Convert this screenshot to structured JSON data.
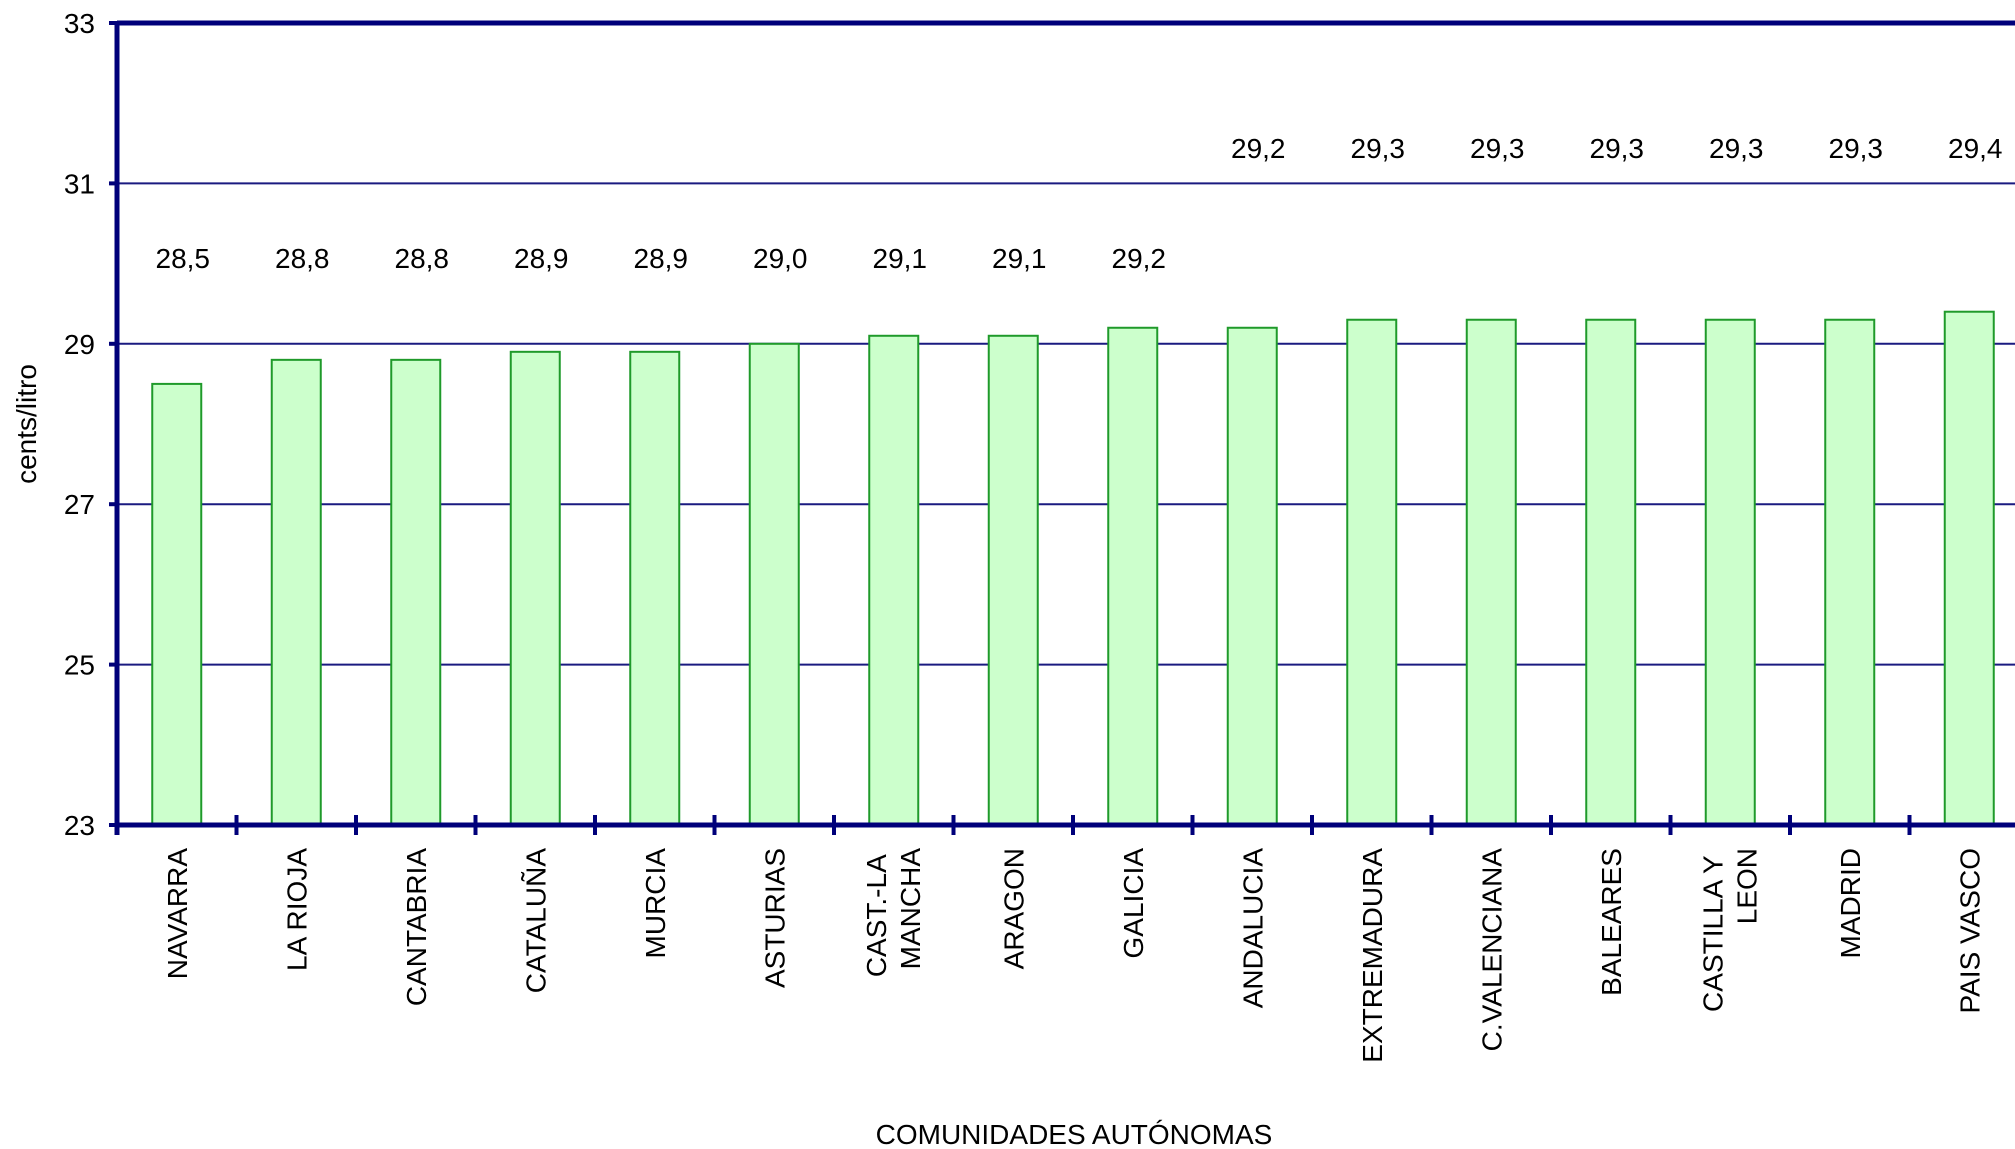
{
  "chart_data": {
    "type": "bar",
    "categories": [
      "NAVARRA",
      "LA RIOJA",
      "CANTABRIA",
      "CATALUÑA",
      "MURCIA",
      "ASTURIAS",
      "CAST.-LA MANCHA",
      "ARAGON",
      "GALICIA",
      "ANDALUCIA",
      "EXTREMADURA",
      "C.VALENCIANA",
      "BALEARES",
      "CASTILLA Y LEON",
      "MADRID",
      "PAIS VASCO"
    ],
    "values": [
      28.5,
      28.8,
      28.8,
      28.9,
      28.9,
      29.0,
      29.1,
      29.1,
      29.2,
      29.2,
      29.3,
      29.3,
      29.3,
      29.3,
      29.3,
      29.4
    ],
    "value_labels": [
      "28,5",
      "28,8",
      "28,8",
      "28,9",
      "28,9",
      "29,0",
      "29,1",
      "29,1",
      "29,2",
      "29,2",
      "29,3",
      "29,3",
      "29,3",
      "29,3",
      "29,3",
      "29,4"
    ],
    "color": "#ccffcc",
    "ylim": [
      23,
      33
    ],
    "yticks": [
      23,
      25,
      27,
      29,
      31,
      33
    ],
    "grid": true,
    "y_label": "cents/litro",
    "x_label": "COMUNIDADES AUTÓNOMAS"
  }
}
